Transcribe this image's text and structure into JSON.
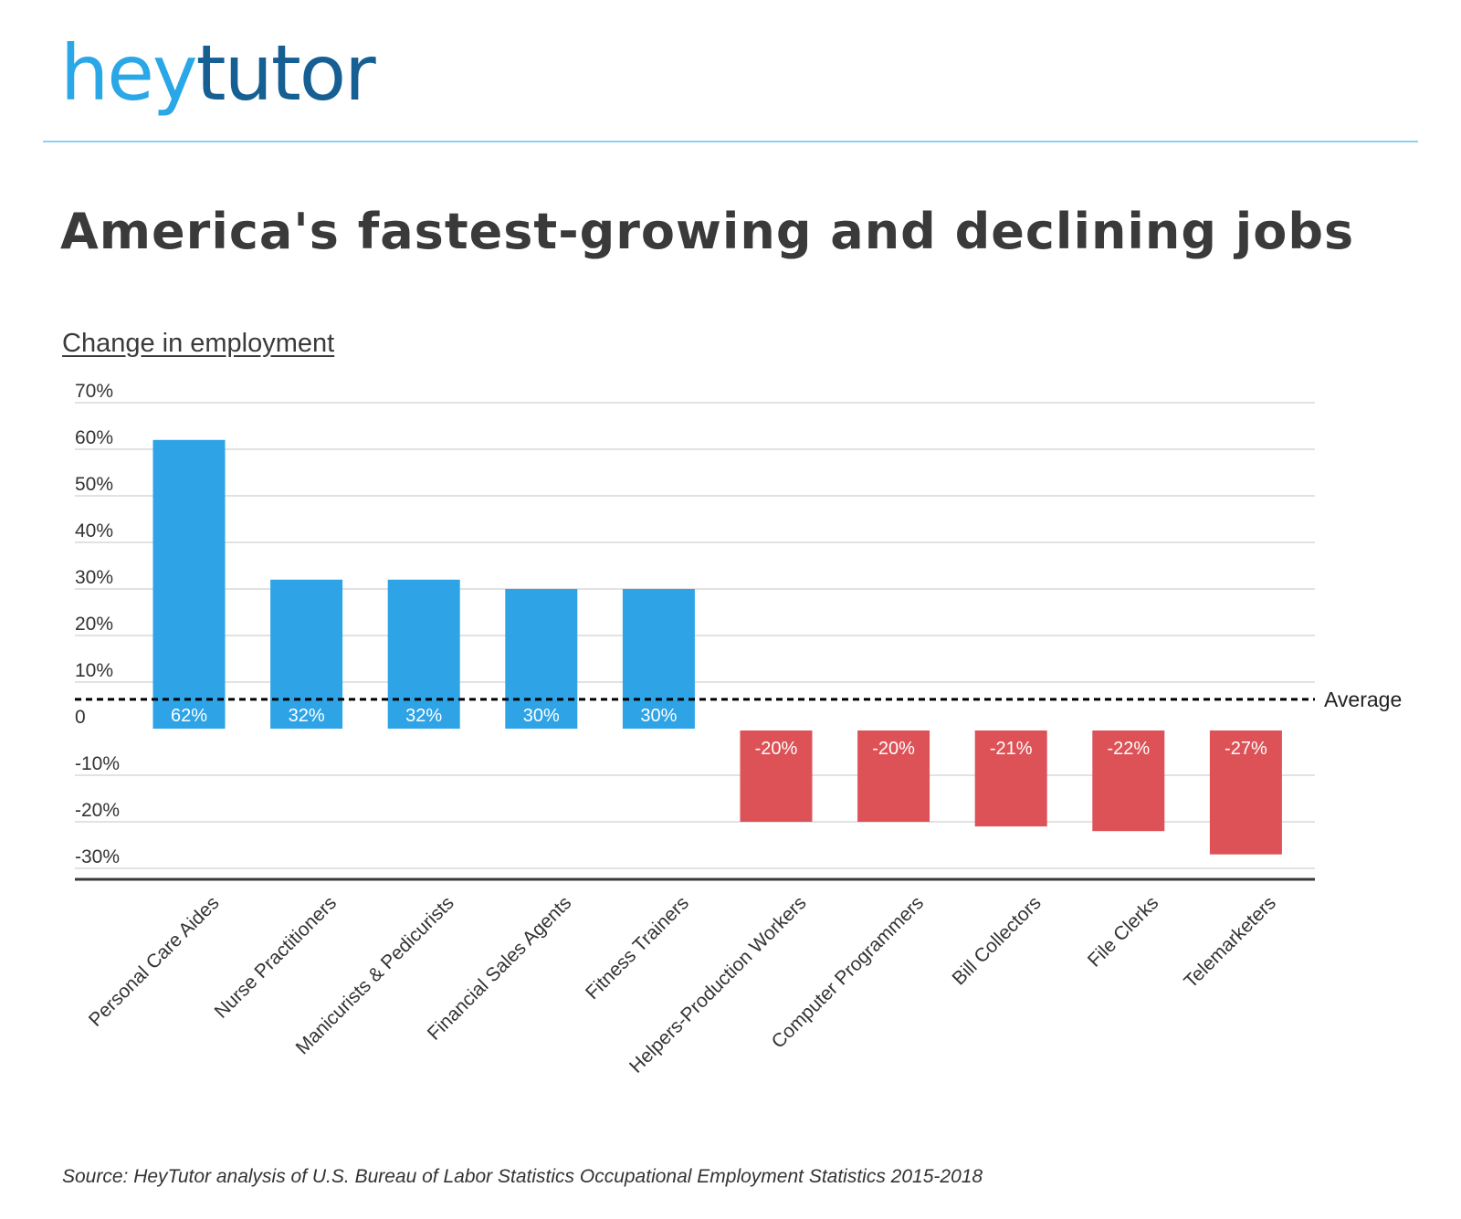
{
  "logo": {
    "part1": "hey",
    "part2": "tutor",
    "brand_colors": [
      "#2aa7e6",
      "#155f93"
    ]
  },
  "title": "America's fastest-growing and declining jobs",
  "source": "Source: HeyTutor analysis of  U.S. Bureau of Labor Statistics Occupational Employment Statistics 2015-2018",
  "chart_data": {
    "type": "bar",
    "title": "America's fastest-growing and declining jobs",
    "ylabel": "Change in employment",
    "xlabel": "",
    "categories": [
      "Personal Care Aides",
      "Nurse Practitioners",
      "Manicurists & Pedicurists",
      "Financial Sales Agents",
      "Fitness Trainers",
      "Helpers-Production Workers",
      "Computer Programmers",
      "Bill Collectors",
      "File Clerks",
      "Telemarketers"
    ],
    "values": [
      62,
      32,
      32,
      30,
      30,
      -20,
      -20,
      -21,
      -22,
      -27
    ],
    "data_labels": [
      "62%",
      "32%",
      "32%",
      "30%",
      "30%",
      "-20%",
      "-20%",
      "-21%",
      "-22%",
      "-27%"
    ],
    "ylim": [
      -30,
      70
    ],
    "yticks": [
      70,
      60,
      50,
      40,
      30,
      20,
      10,
      0,
      -10,
      -20,
      -30
    ],
    "ytick_labels": [
      "70%",
      "60%",
      "50%",
      "40%",
      "30%",
      "20%",
      "10%",
      "0",
      "-10%",
      "-20%",
      "-30%"
    ],
    "average": {
      "value": 6.3,
      "label": "Average"
    },
    "grid": true,
    "colors": {
      "positive": "#2ea3e6",
      "negative": "#dc5257",
      "grid": "#d9d9d9",
      "axis": "#3a3a3a",
      "average_line": "#000000"
    }
  }
}
